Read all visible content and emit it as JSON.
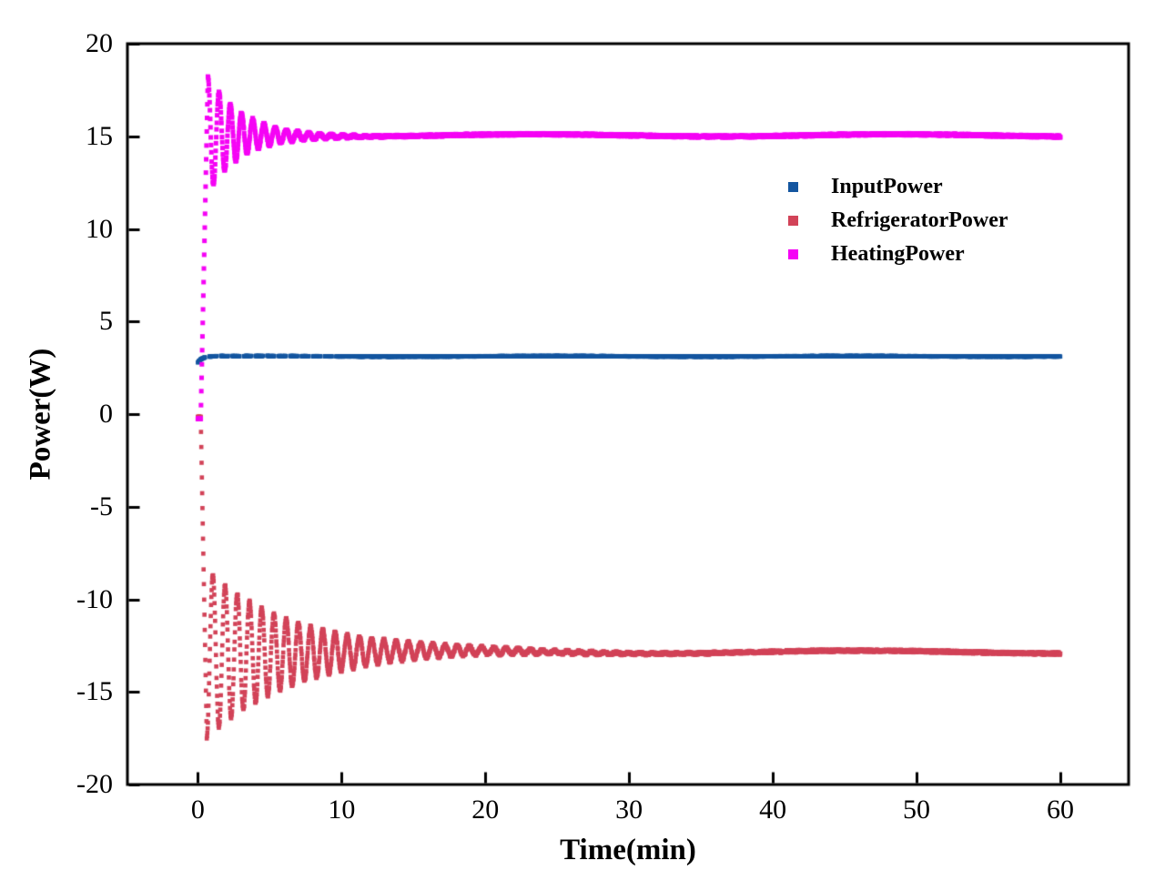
{
  "chart_data": {
    "type": "scatter",
    "title": "",
    "xlabel": "Time(min)",
    "ylabel": "Power(W)",
    "xlim": [
      -4.9,
      64.75
    ],
    "ylim": [
      -20,
      20
    ],
    "xticks": [
      0,
      10,
      20,
      30,
      40,
      50,
      60
    ],
    "yticks": [
      -20,
      -15,
      -10,
      -5,
      0,
      5,
      10,
      15,
      20
    ],
    "grid": false,
    "legend_position": "upper right inside, no frame",
    "marker_shape": "square",
    "axis_color": "#000000",
    "background_color": "#ffffff",
    "sample_step_min": 0.02,
    "series": [
      {
        "name": "InputPower",
        "color": "#1456a0",
        "marker_size": 4.4,
        "t_start": 0,
        "t_end": 60,
        "model": {
          "type": "rise",
          "start_value": 2.78,
          "steady_value": 3.12,
          "tau": 0.3
        },
        "noise": 0.018,
        "slow_wobble": {
          "amp": 0.015,
          "freq": 0.3,
          "phase": 0.5
        },
        "dash": {
          "until": 10,
          "period": 0.8,
          "on": 0.52
        },
        "readings": {
          "value_at_t0": 2.8,
          "steady_value": 3.1,
          "value_at_t60": 3.15
        }
      },
      {
        "name": "RefrigeratorPower",
        "color": "#d24358",
        "marker_size": 4.6,
        "t_start": 0,
        "t_end": 60,
        "model": {
          "type": "damped_osc",
          "start_value": -0.15,
          "flat_until": 0.2,
          "t_first_extreme": 0.62,
          "first_extreme": -17.4,
          "steady_value": -12.85,
          "period": 0.85,
          "decay_tau": 6.2
        },
        "noise": 0.07,
        "slow_wobble": {
          "amp": 0.08,
          "freq": 0.22,
          "phase": 4.0
        },
        "readings": {
          "value_at_t0": -0.1,
          "min_peak": -17.4,
          "max_rebound": -8.1,
          "oscillation_dies_by_t": 18,
          "value_at_t60": -12.8
        }
      },
      {
        "name": "HeatingPower",
        "color": "#f504f5",
        "marker_size": 5.0,
        "t_start": 0,
        "t_end": 60,
        "model": {
          "type": "damped_osc",
          "start_value": -0.25,
          "flat_until": 0.2,
          "t_first_extreme": 0.7,
          "first_extreme": 18.2,
          "steady_value": 15.05,
          "period": 0.78,
          "decay_tau": 2.4
        },
        "noise": 0.055,
        "slow_wobble": {
          "amp": 0.06,
          "freq": 0.25,
          "phase": 2.0
        },
        "readings": {
          "value_at_t0": -0.2,
          "max_peak": 18.1,
          "min_rebound": 12.1,
          "oscillation_dies_by_t": 8,
          "value_at_t60": 15.1
        }
      }
    ]
  }
}
